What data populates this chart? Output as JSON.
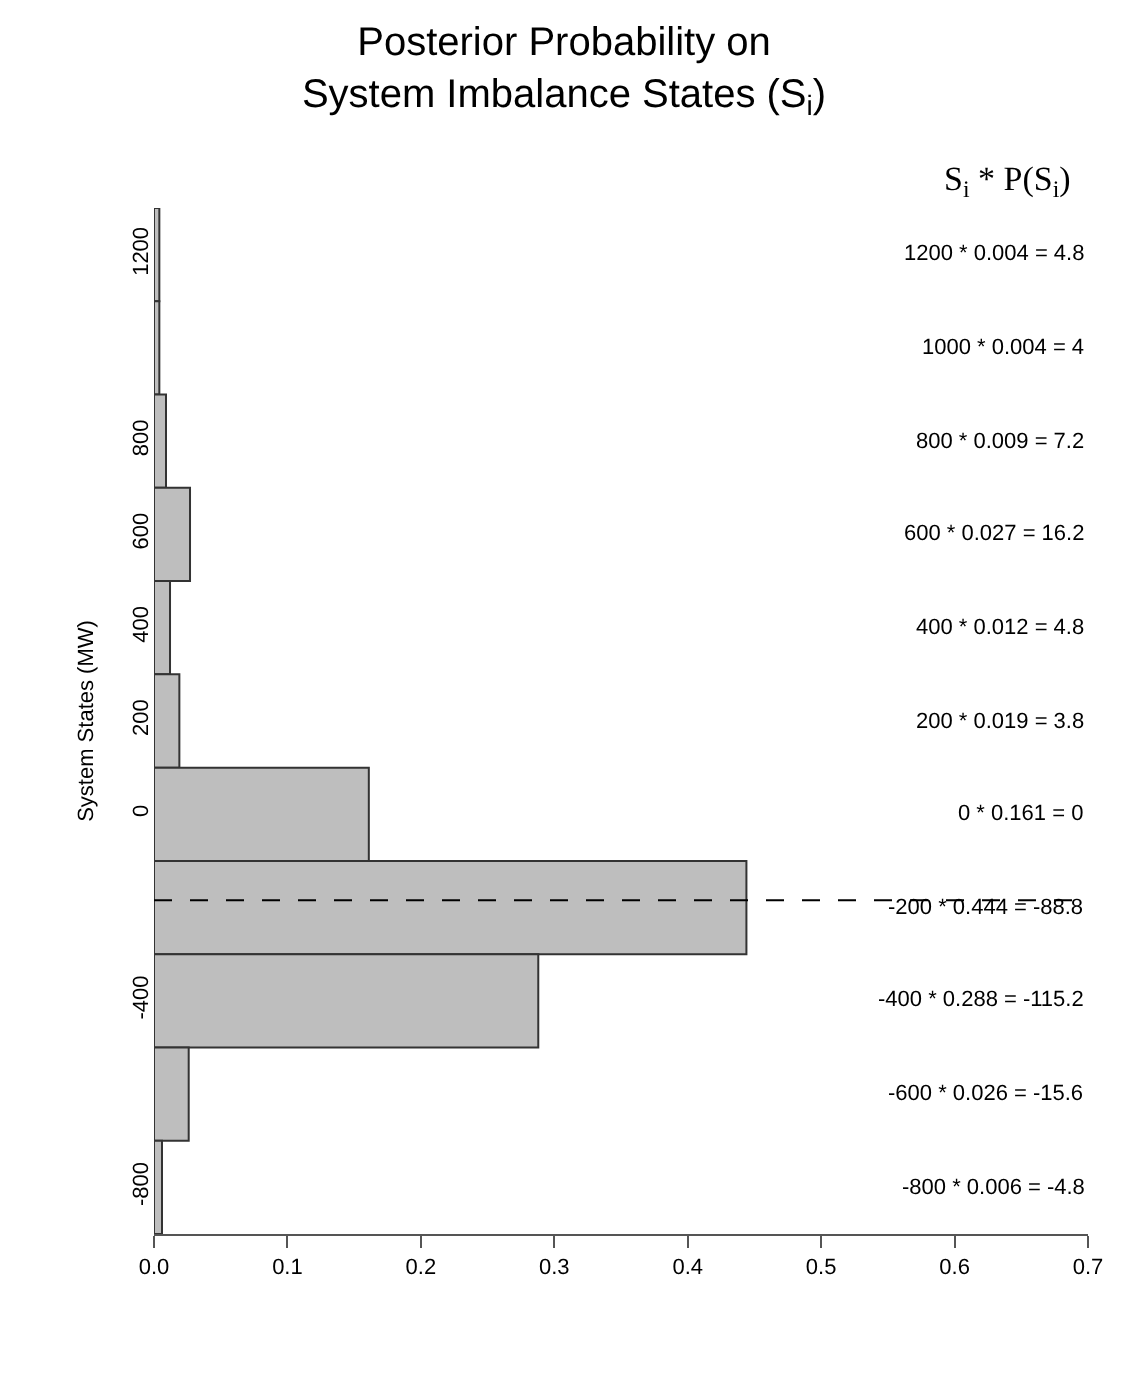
{
  "chart_data": {
    "type": "bar",
    "orientation": "horizontal",
    "title": "Posterior Probability on\nSystem Imbalance States (S$_{i}$)",
    "ylabel": "System States (MW)",
    "x": [
      1200,
      1000,
      800,
      600,
      400,
      200,
      0,
      -200,
      -400,
      -600,
      -800
    ],
    "values": [
      0.004,
      0.004,
      0.009,
      0.027,
      0.012,
      0.019,
      0.161,
      0.444,
      0.288,
      0.026,
      0.006
    ],
    "color": "#bebebe",
    "xlim": [
      0,
      0.7
    ],
    "xticks": [
      {
        "value": 0,
        "label": "0.0"
      },
      0.1,
      0.2,
      0.3,
      0.4,
      0.5,
      0.6,
      0.7
    ],
    "ylim": [
      -900,
      1300
    ],
    "yticks": [
      -800,
      -400,
      0,
      200,
      400,
      600,
      800,
      1200
    ],
    "ref_lines": [
      {
        "axis": "y",
        "value": -184.4,
        "line_style": "dashed",
        "color": "#000000"
      }
    ],
    "annotations": [
      "S$_{i}$ * P(S$_{i}$)",
      "1200 * 0.004 = 4.8",
      "1000 * 0.004 = 4",
      "800 * 0.009 = 7.2",
      "600 * 0.027 = 16.2",
      "400 * 0.012 = 4.8",
      "200 * 0.019 = 3.8",
      "0 * 0.161 = 0",
      "-200 * 0.444 = -88.8",
      "-400 * 0.288 = -115.2",
      "-600 * 0.026 = -15.6",
      "-800 * 0.006 = -4.8"
    ]
  }
}
